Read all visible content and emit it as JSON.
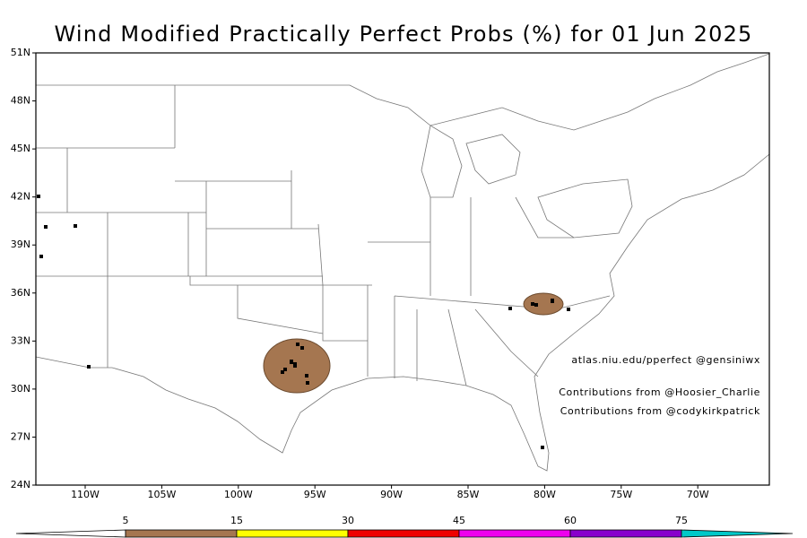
{
  "title": "Wind Modified Practically Perfect Probs (%) for 01 Jun 2025",
  "lat_labels": [
    "51N",
    "48N",
    "45N",
    "42N",
    "39N",
    "36N",
    "33N",
    "30N",
    "27N",
    "24N"
  ],
  "lon_labels": [
    "110W",
    "105W",
    "100W",
    "95W",
    "90W",
    "85W",
    "80W",
    "75W",
    "70W"
  ],
  "credits": [
    "atlas.niu.edu/pperfect @gensiniwx",
    "Contributions from @Hoosier_Charlie",
    "Contributions from @codykirkpatrick"
  ],
  "colorbar": {
    "levels": [
      5,
      15,
      30,
      45,
      60,
      75
    ],
    "colors": [
      "#a57650",
      "#ffff00",
      "#ee0000",
      "#ee00ee",
      "#8800cc",
      "#00c8c8"
    ]
  }
}
